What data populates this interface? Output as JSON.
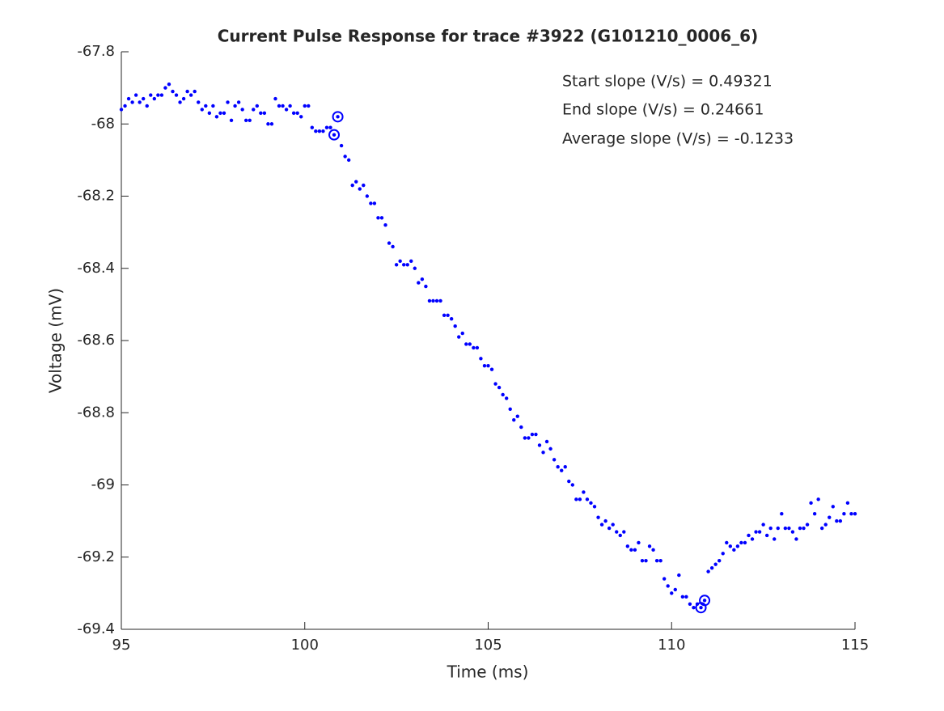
{
  "chart_data": {
    "type": "scatter",
    "title": "Current Pulse Response for trace #3922 (G101210_0006_6)",
    "xlabel": "Time (ms)",
    "ylabel": "Voltage (mV)",
    "annotations": [
      "Start slope (V/s) = 0.49321",
      "End slope (V/s) = 0.24661",
      "Average slope (V/s) = -0.1233"
    ],
    "xlim": [
      95,
      115
    ],
    "xticks": [
      95,
      100,
      105,
      110,
      115
    ],
    "ylim": [
      -69.4,
      -67.8
    ],
    "yticks": [
      -67.8,
      -68,
      -68.2,
      -68.4,
      -68.6,
      -68.8,
      -69,
      -69.2,
      -69.4
    ],
    "series": [
      {
        "color": "#0000ff",
        "marker": "dot",
        "x": [
          95.0,
          95.1,
          95.2,
          95.3,
          95.4,
          95.5,
          95.6,
          95.7,
          95.8,
          95.9,
          96.0,
          96.1,
          96.2,
          96.3,
          96.4,
          96.5,
          96.6,
          96.7,
          96.8,
          96.9,
          97.0,
          97.1,
          97.2,
          97.3,
          97.4,
          97.5,
          97.6,
          97.7,
          97.8,
          97.9,
          98.0,
          98.1,
          98.2,
          98.3,
          98.4,
          98.5,
          98.6,
          98.7,
          98.8,
          98.9,
          99.0,
          99.1,
          99.2,
          99.3,
          99.4,
          99.5,
          99.6,
          99.7,
          99.8,
          99.9,
          100.0,
          100.1,
          100.2,
          100.3,
          100.4,
          100.5,
          100.6,
          100.7,
          100.8,
          100.9,
          101.0,
          101.1,
          101.2,
          101.3,
          101.4,
          101.5,
          101.6,
          101.7,
          101.8,
          101.9,
          102.0,
          102.1,
          102.2,
          102.3,
          102.4,
          102.5,
          102.6,
          102.7,
          102.8,
          102.9,
          103.0,
          103.1,
          103.2,
          103.3,
          103.4,
          103.5,
          103.6,
          103.7,
          103.8,
          103.9,
          104.0,
          104.1,
          104.2,
          104.3,
          104.4,
          104.5,
          104.6,
          104.7,
          104.8,
          104.9,
          105.0,
          105.1,
          105.2,
          105.3,
          105.4,
          105.5,
          105.6,
          105.7,
          105.8,
          105.9,
          106.0,
          106.1,
          106.2,
          106.3,
          106.4,
          106.5,
          106.6,
          106.7,
          106.8,
          106.9,
          107.0,
          107.1,
          107.2,
          107.3,
          107.4,
          107.5,
          107.6,
          107.7,
          107.8,
          107.9,
          108.0,
          108.1,
          108.2,
          108.3,
          108.4,
          108.5,
          108.6,
          108.7,
          108.8,
          108.9,
          109.0,
          109.1,
          109.2,
          109.3,
          109.4,
          109.5,
          109.6,
          109.7,
          109.8,
          109.9,
          110.0,
          110.1,
          110.2,
          110.3,
          110.4,
          110.5,
          110.6,
          110.7,
          110.8,
          110.9,
          111.0,
          111.1,
          111.2,
          111.3,
          111.4,
          111.5,
          111.6,
          111.7,
          111.8,
          111.9,
          112.0,
          112.1,
          112.2,
          112.3,
          112.4,
          112.5,
          112.6,
          112.7,
          112.8,
          112.9,
          113.0,
          113.1,
          113.2,
          113.3,
          113.4,
          113.5,
          113.6,
          113.7,
          113.8,
          113.9,
          114.0,
          114.1,
          114.2,
          114.3,
          114.4,
          114.5,
          114.6,
          114.7,
          114.8,
          114.9,
          115.0
        ],
        "values": [
          -67.96,
          -67.95,
          -67.93,
          -67.94,
          -67.92,
          -67.94,
          -67.93,
          -67.95,
          -67.92,
          -67.93,
          -67.92,
          -67.92,
          -67.9,
          -67.89,
          -67.91,
          -67.92,
          -67.94,
          -67.93,
          -67.91,
          -67.92,
          -67.91,
          -67.94,
          -67.96,
          -67.95,
          -67.97,
          -67.95,
          -67.98,
          -67.97,
          -67.97,
          -67.94,
          -67.99,
          -67.95,
          -67.94,
          -67.96,
          -67.99,
          -67.99,
          -67.96,
          -67.95,
          -67.97,
          -67.97,
          -68.0,
          -68.0,
          -67.93,
          -67.95,
          -67.95,
          -67.96,
          -67.95,
          -67.97,
          -67.97,
          -67.98,
          -67.95,
          -67.95,
          -68.01,
          -68.02,
          -68.02,
          -68.02,
          -68.01,
          -68.01,
          -68.03,
          -67.98,
          -68.06,
          -68.09,
          -68.1,
          -68.17,
          -68.16,
          -68.18,
          -68.17,
          -68.2,
          -68.22,
          -68.22,
          -68.26,
          -68.26,
          -68.28,
          -68.33,
          -68.34,
          -68.39,
          -68.38,
          -68.39,
          -68.39,
          -68.38,
          -68.4,
          -68.44,
          -68.43,
          -68.45,
          -68.49,
          -68.49,
          -68.49,
          -68.49,
          -68.53,
          -68.53,
          -68.54,
          -68.56,
          -68.59,
          -68.58,
          -68.61,
          -68.61,
          -68.62,
          -68.62,
          -68.65,
          -68.67,
          -68.67,
          -68.68,
          -68.72,
          -68.73,
          -68.75,
          -68.76,
          -68.79,
          -68.82,
          -68.81,
          -68.84,
          -68.87,
          -68.87,
          -68.86,
          -68.86,
          -68.89,
          -68.91,
          -68.88,
          -68.9,
          -68.93,
          -68.95,
          -68.96,
          -68.95,
          -68.99,
          -69.0,
          -69.04,
          -69.04,
          -69.02,
          -69.04,
          -69.05,
          -69.06,
          -69.09,
          -69.11,
          -69.1,
          -69.12,
          -69.11,
          -69.13,
          -69.14,
          -69.13,
          -69.17,
          -69.18,
          -69.18,
          -69.16,
          -69.21,
          -69.21,
          -69.17,
          -69.18,
          -69.21,
          -69.21,
          -69.26,
          -69.28,
          -69.3,
          -69.29,
          -69.25,
          -69.31,
          -69.31,
          -69.33,
          -69.34,
          -69.33,
          -69.34,
          -69.32,
          -69.24,
          -69.23,
          -69.22,
          -69.21,
          -69.19,
          -69.16,
          -69.17,
          -69.18,
          -69.17,
          -69.16,
          -69.16,
          -69.14,
          -69.15,
          -69.13,
          -69.13,
          -69.11,
          -69.14,
          -69.12,
          -69.15,
          -69.12,
          -69.08,
          -69.12,
          -69.12,
          -69.13,
          -69.15,
          -69.12,
          -69.12,
          -69.11,
          -69.05,
          -69.08,
          -69.04,
          -69.12,
          -69.11,
          -69.09,
          -69.06,
          -69.1,
          -69.1,
          -69.08,
          -69.05,
          -69.08,
          -69.08
        ]
      },
      {
        "color": "#0000ff",
        "marker": "circle",
        "x": [
          100.8,
          100.9,
          110.8,
          110.9
        ],
        "values": [
          -68.03,
          -67.98,
          -69.34,
          -69.32
        ]
      }
    ]
  }
}
